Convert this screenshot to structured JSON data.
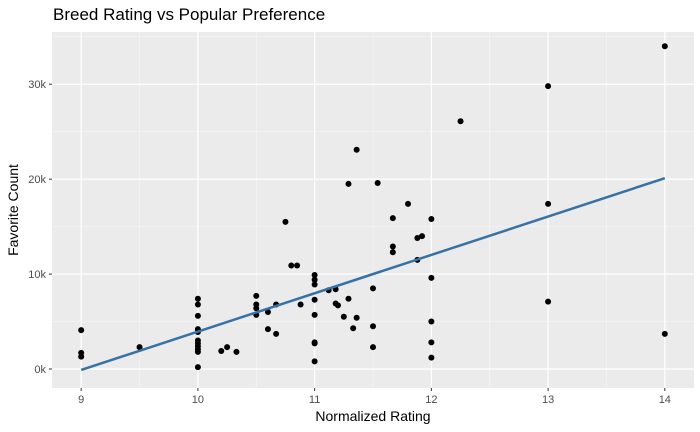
{
  "chart_data": {
    "type": "scatter",
    "title": "Breed Rating vs Popular Preference",
    "xlabel": "Normalized Rating",
    "ylabel": "Favorite Count",
    "xlim": [
      8.75,
      14.25
    ],
    "ylim": [
      -2000,
      35500
    ],
    "x_ticks": [
      9,
      10,
      11,
      12,
      13,
      14
    ],
    "x_tick_labels": [
      "9",
      "10",
      "11",
      "12",
      "13",
      "14"
    ],
    "y_ticks": [
      0,
      10000,
      20000,
      30000
    ],
    "y_tick_labels": [
      "0k",
      "10k",
      "20k",
      "30k"
    ],
    "grid": true,
    "background": "#ebebeb",
    "point_color": "#000000",
    "line_color": "#3672a4",
    "points": [
      [
        9,
        4100
      ],
      [
        9,
        1700
      ],
      [
        9,
        1300
      ],
      [
        9.5,
        2300
      ],
      [
        10,
        7400
      ],
      [
        10,
        6800
      ],
      [
        10,
        5600
      ],
      [
        10,
        4200
      ],
      [
        10,
        3900
      ],
      [
        10,
        3000
      ],
      [
        10,
        2700
      ],
      [
        10,
        2400
      ],
      [
        10,
        2100
      ],
      [
        10,
        1800
      ],
      [
        10,
        200
      ],
      [
        10.2,
        1900
      ],
      [
        10.25,
        2300
      ],
      [
        10.33,
        1800
      ],
      [
        10.5,
        7700
      ],
      [
        10.5,
        6800
      ],
      [
        10.5,
        6400
      ],
      [
        10.5,
        5700
      ],
      [
        10.6,
        6000
      ],
      [
        10.6,
        4200
      ],
      [
        10.67,
        6800
      ],
      [
        10.67,
        3700
      ],
      [
        10.75,
        15500
      ],
      [
        10.8,
        10900
      ],
      [
        10.85,
        10900
      ],
      [
        10.88,
        6800
      ],
      [
        11,
        9900
      ],
      [
        11,
        9400
      ],
      [
        11,
        8900
      ],
      [
        11,
        7300
      ],
      [
        11,
        5700
      ],
      [
        11,
        2800
      ],
      [
        11,
        2700
      ],
      [
        11,
        800
      ],
      [
        11.12,
        8300
      ],
      [
        11.18,
        8400
      ],
      [
        11.18,
        6900
      ],
      [
        11.2,
        6700
      ],
      [
        11.25,
        5500
      ],
      [
        11.29,
        7400
      ],
      [
        11.29,
        19500
      ],
      [
        11.33,
        4300
      ],
      [
        11.36,
        5400
      ],
      [
        11.36,
        23100
      ],
      [
        11.5,
        8500
      ],
      [
        11.5,
        4500
      ],
      [
        11.5,
        2300
      ],
      [
        11.54,
        19600
      ],
      [
        11.67,
        15900
      ],
      [
        11.67,
        12900
      ],
      [
        11.67,
        12300
      ],
      [
        11.8,
        17400
      ],
      [
        11.88,
        13800
      ],
      [
        11.88,
        11500
      ],
      [
        11.92,
        14000
      ],
      [
        12,
        15800
      ],
      [
        12,
        9600
      ],
      [
        12,
        5000
      ],
      [
        12,
        2800
      ],
      [
        12,
        1200
      ],
      [
        12.25,
        26100
      ],
      [
        13,
        29800
      ],
      [
        13,
        17400
      ],
      [
        13,
        7100
      ],
      [
        14,
        34000
      ],
      [
        14,
        3700
      ]
    ],
    "trend_line": {
      "x": [
        9,
        14
      ],
      "y": [
        -100,
        20100
      ]
    }
  }
}
